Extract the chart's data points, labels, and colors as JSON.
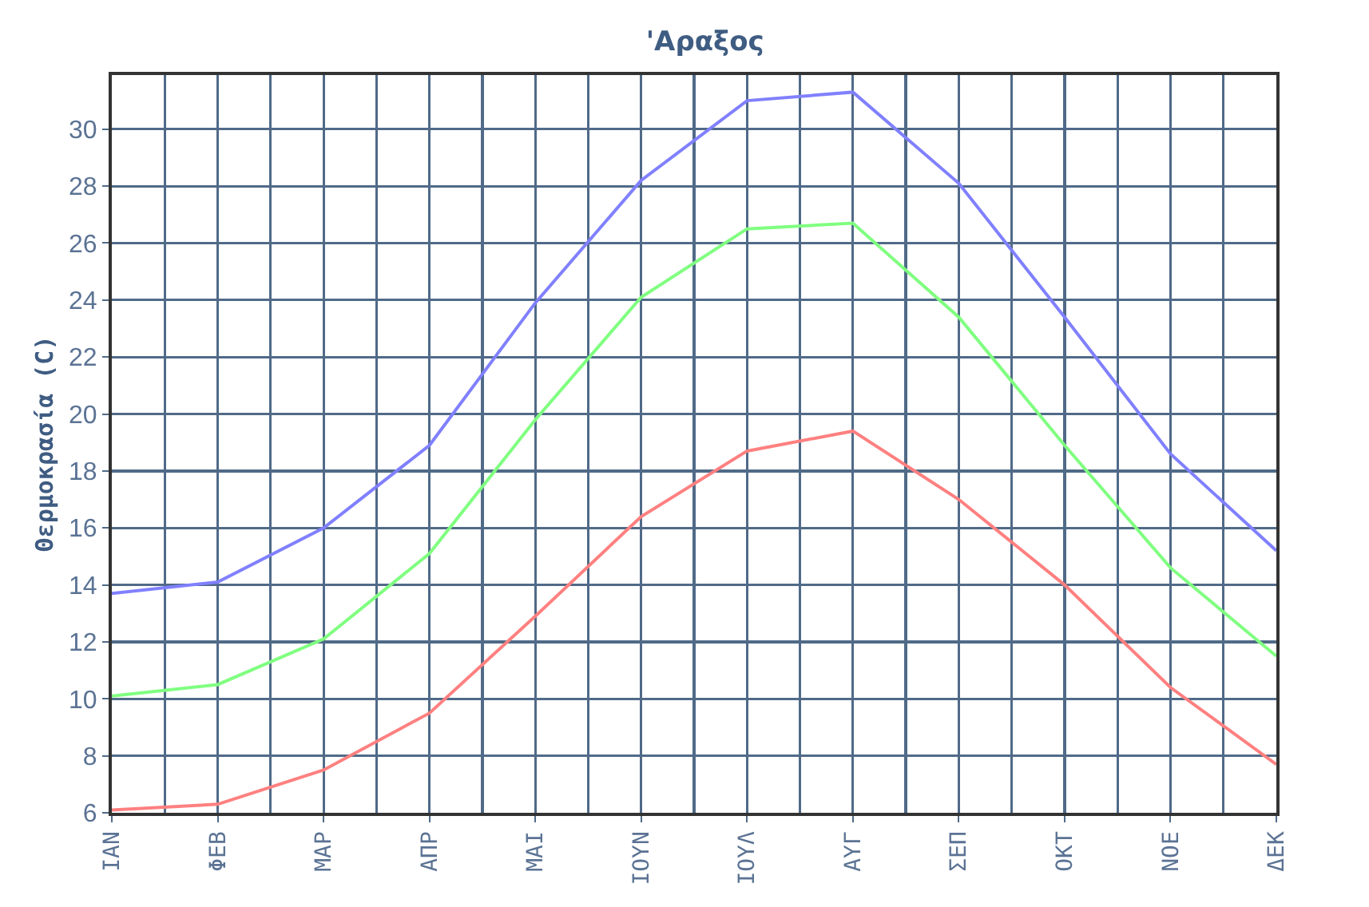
{
  "chart_data": {
    "type": "line",
    "title": "'Αραξος",
    "ylabel": "Θερμοκρασία (C)",
    "categories": [
      "ΙΑΝ",
      "ΦΕΒ",
      "ΜΑΡ",
      "ΑΠΡ",
      "ΜΑΙ",
      "ΙΟΥΝ",
      "ΙΟΥΛ",
      "ΑΥΓ",
      "ΣΕΠ",
      "ΟΚΤ",
      "ΝΟΕ",
      "ΔΕΚ"
    ],
    "series": [
      {
        "color": "#8080ff",
        "values": [
          13.7,
          14.1,
          16.0,
          18.9,
          23.9,
          28.2,
          31.0,
          31.3,
          28.1,
          23.4,
          18.6,
          15.2
        ]
      },
      {
        "color": "#80ff80",
        "values": [
          10.1,
          10.5,
          12.1,
          15.1,
          19.8,
          24.1,
          26.5,
          26.7,
          23.4,
          18.9,
          14.6,
          11.5
        ]
      },
      {
        "color": "#ff8080",
        "values": [
          6.1,
          6.3,
          7.5,
          9.5,
          12.9,
          16.4,
          18.7,
          19.4,
          17.0,
          14.0,
          10.4,
          7.7
        ]
      }
    ],
    "ylim": [
      6,
      31.9
    ],
    "yticks": [
      6,
      8,
      10,
      12,
      14,
      16,
      18,
      20,
      22,
      24,
      26,
      28,
      30
    ],
    "grid": true,
    "marker": "none",
    "line_style": "solid"
  }
}
